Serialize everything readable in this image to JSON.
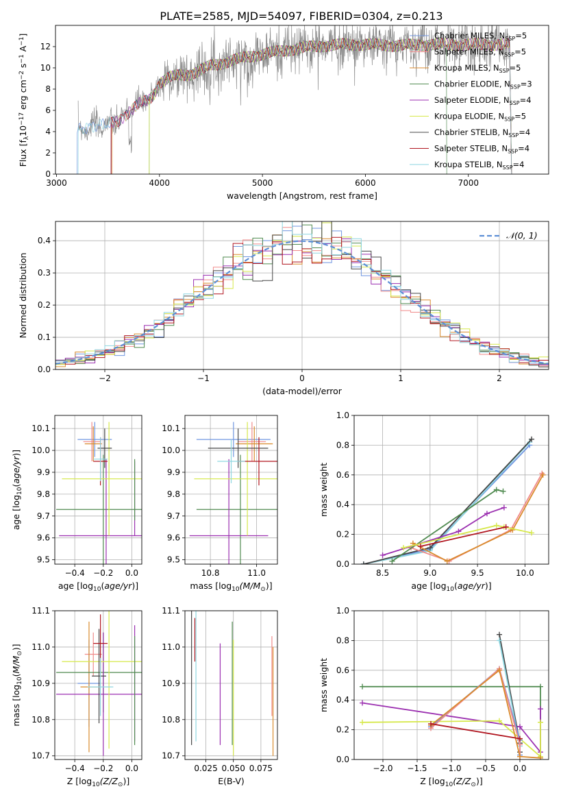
{
  "title": "PLATE=2585, MJD=54097, FIBERID=0304, z=0.213",
  "colors": {
    "chabrier_miles": "#6f95e0",
    "salpeter_miles": "#f08a8a",
    "kroupa_miles": "#d98a2c",
    "chabrier_elodie": "#4f8a4f",
    "salpeter_elodie": "#9b2fb0",
    "kroupa_elodie": "#d6e84a",
    "chabrier_stelib": "#444444",
    "salpeter_stelib": "#b0141e",
    "kroupa_stelib": "#8ed6e0",
    "data": "#8a8a8a",
    "normal": "#5b8ed6"
  },
  "chart_data": [
    {
      "id": "spectrum",
      "type": "line",
      "title": "PLATE=2585, MJD=54097, FIBERID=0304, z=0.213",
      "xlabel": "wavelength [Angstrom, rest frame]",
      "ylabel": "Flux [f$_\\lambda$10$^{-17}$ erg cm$^{-2}$ s$^{-1}$ A$^{-1}$]",
      "xlim": [
        2990,
        7780
      ],
      "ylim": [
        0,
        14
      ],
      "xticks": [
        "3000",
        "4000",
        "5000",
        "6000",
        "7000"
      ],
      "yticks": [
        "0",
        "2",
        "4",
        "6",
        "8",
        "10",
        "12"
      ],
      "legend": "top-right",
      "legend_entries": [
        {
          "label": "Chabrier MILES, N",
          "sub": "SSP",
          "eq": "=5"
        },
        {
          "label": "Salpeter MILES, N",
          "sub": "SSP",
          "eq": "=5"
        },
        {
          "label": "Kroupa MILES, N",
          "sub": "SSP",
          "eq": "=5"
        },
        {
          "label": "Chabrier ELODIE, N",
          "sub": "SSP",
          "eq": "=3"
        },
        {
          "label": "Salpeter ELODIE, N",
          "sub": "SSP",
          "eq": "=4"
        },
        {
          "label": "Kroupa ELODIE, N",
          "sub": "SSP",
          "eq": "=5"
        },
        {
          "label": "Chabrier STELIB, N",
          "sub": "SSP",
          "eq": "=4"
        },
        {
          "label": "Salpeter STELIB, N",
          "sub": "SSP",
          "eq": "=4"
        },
        {
          "label": "Kroupa STELIB, N",
          "sub": "SSP",
          "eq": "=4"
        }
      ],
      "continuum": [
        [
          3200,
          0
        ],
        [
          3210,
          4.2
        ],
        [
          3300,
          4.4
        ],
        [
          3400,
          4.6
        ],
        [
          3500,
          4.7
        ],
        [
          3600,
          5.0
        ],
        [
          3700,
          5.8
        ],
        [
          3800,
          6.6
        ],
        [
          3900,
          7.0
        ],
        [
          3950,
          7.6
        ],
        [
          4000,
          8.6
        ],
        [
          4100,
          9.1
        ],
        [
          4200,
          9.3
        ],
        [
          4300,
          9.4
        ],
        [
          4400,
          9.8
        ],
        [
          4500,
          10.2
        ],
        [
          4600,
          10.4
        ],
        [
          4700,
          10.7
        ],
        [
          4800,
          10.9
        ],
        [
          4900,
          11.1
        ],
        [
          5000,
          11.3
        ],
        [
          5200,
          11.6
        ],
        [
          5400,
          11.9
        ],
        [
          5600,
          12.1
        ],
        [
          5800,
          12.2
        ],
        [
          6000,
          12.2
        ],
        [
          6300,
          12.1
        ],
        [
          6600,
          12.2
        ],
        [
          7000,
          12.2
        ],
        [
          7400,
          12.2
        ],
        [
          7420,
          0
        ]
      ],
      "model_cuts": [
        [
          3200,
          7420
        ],
        [
          3530,
          7420
        ],
        [
          3540,
          7420
        ],
        [
          3900,
          6790
        ],
        [
          3530,
          7420
        ],
        [
          3900,
          7420
        ],
        [
          3530,
          7420
        ],
        [
          3530,
          7420
        ],
        [
          3210,
          7420
        ]
      ]
    },
    {
      "id": "residuals",
      "type": "histogram",
      "xlabel": "(data-model)/error",
      "ylabel": "Normed distribution",
      "xlim": [
        -2.5,
        2.5
      ],
      "ylim": [
        0,
        0.46
      ],
      "xticks": [
        "−2",
        "−1",
        "0",
        "1",
        "2"
      ],
      "yticks": [
        "0.0",
        "0.1",
        "0.2",
        "0.3",
        "0.4"
      ],
      "legend": "top-right",
      "legend_label": "𝒩(0, 1)",
      "bin_width": 0.1
    },
    {
      "id": "age_vs_Z",
      "type": "errorbar",
      "xlabel": "Z [log",
      "xlabel_sub": "10",
      "xlabel_tail": "(Z/Z",
      "xlabel_sun": "⊙",
      "xlabel_end": ")]",
      "ylabel": "age  [log10(age/yr)]",
      "xlim": [
        -0.54,
        0.07
      ],
      "ylim": [
        9.48,
        10.16
      ],
      "xticks": [
        "−0.4",
        "−0.2",
        "0.0"
      ],
      "yticks": [
        "9.5",
        "9.6",
        "9.7",
        "9.8",
        "9.9",
        "10.0",
        "10.1"
      ],
      "points": [
        {
          "c": "chabrier_miles",
          "x": -0.26,
          "xe": 0.12,
          "y": 10.05,
          "ye": 0.08
        },
        {
          "c": "salpeter_miles",
          "x": -0.28,
          "xe": 0.06,
          "y": 10.04,
          "ye": 0.09
        },
        {
          "c": "kroupa_miles",
          "x": -0.27,
          "xe": 0.06,
          "y": 10.03,
          "ye": 0.08
        },
        {
          "c": "chabrier_elodie",
          "x": -0.2,
          "xe": 0.33,
          "y": 9.73,
          "ye": 0.25
        },
        {
          "c": "salpeter_elodie",
          "x": -0.18,
          "xe": 0.33,
          "y": 9.61,
          "ye": 0.35
        },
        {
          "c": "kroupa_elodie",
          "x": -0.16,
          "xe": 0.33,
          "y": 9.87,
          "ye": 0.26
        },
        {
          "c": "chabrier_stelib",
          "x": -0.19,
          "xe": 0.05,
          "y": 10.01,
          "ye": 0.09
        },
        {
          "c": "salpeter_stelib",
          "x": -0.22,
          "xe": 0.05,
          "y": 9.95,
          "ye": 0.11
        },
        {
          "c": "kroupa_stelib",
          "x": -0.22,
          "xe": 0.05,
          "y": 9.96,
          "ye": 0.1
        },
        {
          "c": "salpeter_elodie",
          "x": 0.02,
          "xe": 0.0,
          "y": 9.78,
          "ye": 0.17
        },
        {
          "c": "chabrier_elodie",
          "x": 0.02,
          "xe": 0.0,
          "y": 9.82,
          "ye": 0.14
        }
      ]
    },
    {
      "id": "age_vs_mass",
      "type": "errorbar",
      "xlabel": "mass [log",
      "xlabel_sub": "10",
      "xlabel_tail": "(M/M",
      "xlabel_sun": "⊙",
      "xlabel_end": ")]",
      "xlim": [
        10.69,
        11.09
      ],
      "ylim": [
        9.48,
        10.16
      ],
      "xticks": [
        "10.8",
        "11.0"
      ],
      "yticks": [
        "9.5",
        "9.6",
        "9.7",
        "9.8",
        "9.9",
        "10.0",
        "10.1"
      ],
      "points": [
        {
          "c": "chabrier_miles",
          "x": 10.9,
          "xe": 0.16,
          "y": 10.05,
          "ye": 0.08
        },
        {
          "c": "salpeter_miles",
          "x": 10.98,
          "xe": 0.06,
          "y": 10.04,
          "ye": 0.09
        },
        {
          "c": "kroupa_miles",
          "x": 10.99,
          "xe": 0.08,
          "y": 10.03,
          "ye": 0.08
        },
        {
          "c": "chabrier_elodie",
          "x": 10.93,
          "xe": 0.19,
          "y": 9.73,
          "ye": 0.25
        },
        {
          "c": "salpeter_elodie",
          "x": 10.88,
          "xe": 0.17,
          "y": 9.61,
          "ye": 0.35
        },
        {
          "c": "kroupa_elodie",
          "x": 10.96,
          "xe": 0.23,
          "y": 9.87,
          "ye": 0.26
        },
        {
          "c": "chabrier_stelib",
          "x": 10.92,
          "xe": 0.13,
          "y": 10.01,
          "ye": 0.09
        },
        {
          "c": "salpeter_stelib",
          "x": 11.01,
          "xe": 0.09,
          "y": 9.95,
          "ye": 0.11
        },
        {
          "c": "kroupa_stelib",
          "x": 10.89,
          "xe": 0.06,
          "y": 9.95,
          "ye": 0.1
        }
      ]
    },
    {
      "id": "massweight_vs_age",
      "type": "line",
      "xlabel": "age  [log10(age/yr)]",
      "ylabel": "mass weight",
      "xlim": [
        8.2,
        10.25
      ],
      "ylim": [
        0,
        1
      ],
      "xticks": [
        "8.5",
        "9.0",
        "9.5",
        "10.0"
      ],
      "yticks": [
        "0.0",
        "0.2",
        "0.4",
        "0.6",
        "0.8",
        "1.0"
      ],
      "series": [
        {
          "c": "chabrier_miles",
          "x": [
            8.3,
            9.0,
            10.05
          ],
          "y": [
            0.0,
            0.1,
            0.8
          ]
        },
        {
          "c": "kroupa_stelib",
          "x": [
            8.3,
            9.0,
            10.05
          ],
          "y": [
            0.0,
            0.09,
            0.82
          ]
        },
        {
          "c": "chabrier_stelib",
          "x": [
            8.3,
            9.0,
            10.07
          ],
          "y": [
            0.0,
            0.11,
            0.84
          ]
        },
        {
          "c": "salpeter_miles",
          "x": [
            8.8,
            9.2,
            9.85,
            10.18
          ],
          "y": [
            0.11,
            0.02,
            0.23,
            0.61
          ]
        },
        {
          "c": "kroupa_miles",
          "x": [
            8.82,
            9.18,
            9.87,
            10.19
          ],
          "y": [
            0.14,
            0.02,
            0.23,
            0.6
          ]
        },
        {
          "c": "chabrier_elodie",
          "x": [
            8.6,
            9.7,
            9.77
          ],
          "y": [
            0.02,
            0.5,
            0.49
          ]
        },
        {
          "c": "salpeter_elodie",
          "x": [
            8.5,
            9.3,
            9.6,
            9.78
          ],
          "y": [
            0.06,
            0.22,
            0.34,
            0.38
          ]
        },
        {
          "c": "kroupa_elodie",
          "x": [
            8.72,
            9.7,
            9.78,
            10.07
          ],
          "y": [
            0.11,
            0.26,
            0.25,
            0.21
          ]
        },
        {
          "c": "salpeter_stelib",
          "x": [
            8.9,
            9.8
          ],
          "y": [
            0.12,
            0.25
          ]
        }
      ]
    },
    {
      "id": "mass_vs_Z",
      "type": "errorbar",
      "xlabel": "Z [log",
      "xlabel_sub": "10",
      "xlabel_tail": "(Z/Z",
      "xlabel_sun": "⊙",
      "xlabel_end": ")]",
      "ylabel": "mass [log10(M/M⊙)]",
      "xlim": [
        -0.54,
        0.07
      ],
      "ylim": [
        10.69,
        11.1
      ],
      "xticks": [
        "−0.4",
        "−0.2",
        "0.0"
      ],
      "yticks": [
        "10.7",
        "10.8",
        "10.9",
        "11.0",
        "11.1"
      ],
      "points": [
        {
          "c": "chabrier_miles",
          "x": -0.3,
          "xe": 0.08,
          "y": 10.9,
          "ye": 0.12
        },
        {
          "c": "salpeter_miles",
          "x": -0.27,
          "xe": 0.06,
          "y": 10.98,
          "ye": 0.06
        },
        {
          "c": "kroupa_miles",
          "x": -0.3,
          "xe": 0.06,
          "y": 10.89,
          "ye": 0.18
        },
        {
          "c": "chabrier_elodie",
          "x": -0.2,
          "xe": 0.33,
          "y": 10.93,
          "ye": 0.11
        },
        {
          "c": "salpeter_elodie",
          "x": -0.2,
          "xe": 0.33,
          "y": 10.87,
          "ye": 0.17
        },
        {
          "c": "kroupa_elodie",
          "x": -0.16,
          "xe": 0.33,
          "y": 10.96,
          "ye": 0.24
        },
        {
          "c": "chabrier_stelib",
          "x": -0.23,
          "xe": 0.05,
          "y": 10.92,
          "ye": 0.13
        },
        {
          "c": "salpeter_stelib",
          "x": -0.22,
          "xe": 0.05,
          "y": 11.01,
          "ye": 0.08
        },
        {
          "c": "kroupa_stelib",
          "x": -0.22,
          "xe": 0.09,
          "y": 10.89,
          "ye": 0.08
        },
        {
          "c": "salpeter_elodie",
          "x": 0.02,
          "xe": 0.0,
          "y": 10.9,
          "ye": 0.16
        },
        {
          "c": "chabrier_elodie",
          "x": 0.02,
          "xe": 0.0,
          "y": 10.88,
          "ye": 0.15
        }
      ]
    },
    {
      "id": "mass_vs_ebv",
      "type": "errorbar",
      "xlabel": "E(B-V)",
      "xlim": [
        0.006,
        0.09
      ],
      "ylim": [
        10.69,
        11.1
      ],
      "xticks": [
        "0.025",
        "0.050",
        "0.075"
      ],
      "yticks": [
        "10.7",
        "10.8",
        "10.9",
        "11.0",
        "11.1"
      ],
      "points": [
        {
          "c": "chabrier_stelib",
          "x": 0.012,
          "xe": 0.0,
          "y": 10.93,
          "ye": 0.2
        },
        {
          "c": "salpeter_stelib",
          "x": 0.015,
          "xe": 0.0,
          "y": 11.02,
          "ye": 0.06
        },
        {
          "c": "kroupa_stelib",
          "x": 0.016,
          "xe": 0.0,
          "y": 10.92,
          "ye": 0.18
        },
        {
          "c": "salpeter_elodie",
          "x": 0.038,
          "xe": 0.0,
          "y": 10.87,
          "ye": 0.14
        },
        {
          "c": "chabrier_elodie",
          "x": 0.049,
          "xe": 0.0,
          "y": 10.9,
          "ye": 0.17
        },
        {
          "c": "kroupa_elodie",
          "x": 0.05,
          "xe": 0.0,
          "y": 10.86,
          "ye": 0.16
        },
        {
          "c": "salpeter_miles",
          "x": 0.085,
          "xe": 0.0,
          "y": 10.92,
          "ye": 0.11
        },
        {
          "c": "kroupa_miles",
          "x": 0.086,
          "xe": 0.0,
          "y": 10.85,
          "ye": 0.15
        }
      ]
    },
    {
      "id": "massweight_vs_Z",
      "type": "line",
      "xlabel": "Z [log",
      "xlabel_sub": "10",
      "xlabel_tail": "(Z/Z",
      "xlabel_sun": "⊙",
      "xlabel_end": ")]",
      "ylabel": "mass weight",
      "xlim": [
        -2.42,
        0.42
      ],
      "ylim": [
        0,
        1
      ],
      "xticks": [
        "−2.0",
        "−1.5",
        "−1.0",
        "−0.5",
        "0.0"
      ],
      "yticks": [
        "0.0",
        "0.2",
        "0.4",
        "0.6",
        "0.8",
        "1.0"
      ],
      "series": [
        {
          "c": "chabrier_elodie",
          "x": [
            -2.3,
            0.3,
            0.3
          ],
          "y": [
            0.49,
            0.49,
            0.02
          ]
        },
        {
          "c": "salpeter_elodie",
          "x": [
            -2.3,
            0.0,
            0.3,
            0.3
          ],
          "y": [
            0.38,
            0.22,
            0.05,
            0.34
          ]
        },
        {
          "c": "kroupa_elodie",
          "x": [
            -2.3,
            -0.3,
            0.3,
            0.3
          ],
          "y": [
            0.25,
            0.26,
            0.02,
            0.25
          ]
        },
        {
          "c": "chabrier_stelib",
          "x": [
            -0.3,
            0.0,
            0.0
          ],
          "y": [
            0.84,
            0.11,
            0.05
          ]
        },
        {
          "c": "kroupa_stelib",
          "x": [
            -0.3,
            0.0,
            0.0
          ],
          "y": [
            0.8,
            0.09,
            0.02
          ]
        },
        {
          "c": "chabrier_miles",
          "x": [
            -1.3,
            -0.3,
            0.0,
            0.0
          ],
          "y": [
            0.22,
            0.61,
            0.13,
            0.03
          ]
        },
        {
          "c": "salpeter_miles",
          "x": [
            -1.3,
            -0.3,
            0.0,
            0.0
          ],
          "y": [
            0.21,
            0.61,
            0.1,
            0.02
          ]
        },
        {
          "c": "kroupa_miles",
          "x": [
            -1.3,
            -0.3,
            0.0,
            0.3
          ],
          "y": [
            0.23,
            0.6,
            0.02,
            0.01
          ]
        },
        {
          "c": "salpeter_stelib",
          "x": [
            -1.3,
            0.0
          ],
          "y": [
            0.24,
            0.14
          ]
        }
      ]
    }
  ]
}
